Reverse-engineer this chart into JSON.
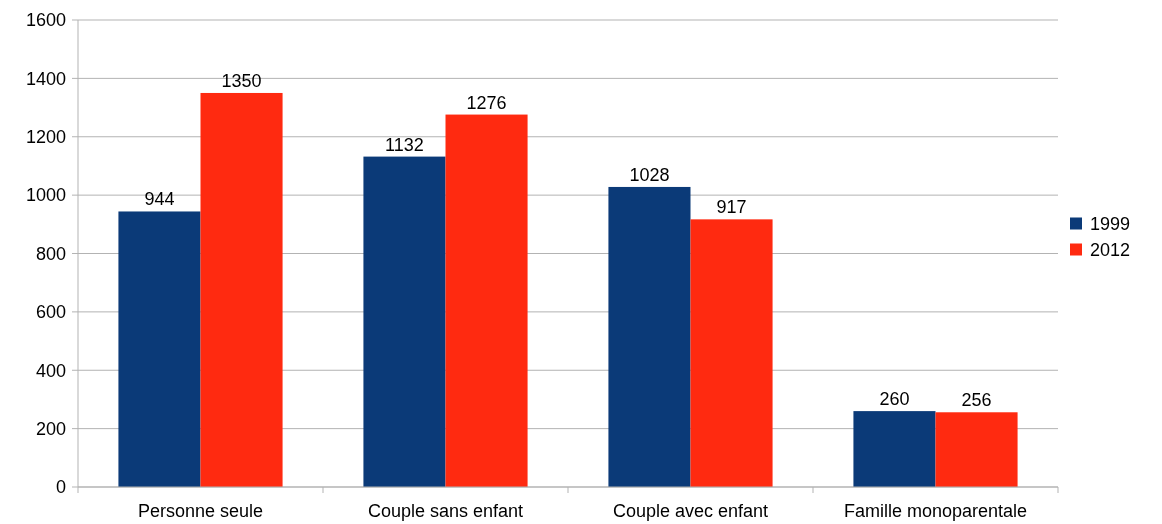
{
  "chart_data": {
    "type": "bar",
    "categories": [
      "Personne seule",
      "Couple sans enfant",
      "Couple avec enfant",
      "Famille monoparentale"
    ],
    "series": [
      {
        "name": "1999",
        "color": "#0b3a78",
        "values": [
          944,
          1132,
          1028,
          260
        ]
      },
      {
        "name": "2012",
        "color": "#ff2a10",
        "values": [
          1350,
          1276,
          917,
          256
        ]
      }
    ],
    "ylim": [
      0,
      1600
    ],
    "yticks": [
      0,
      200,
      400,
      600,
      800,
      1000,
      1200,
      1400,
      1600
    ],
    "grid": "y",
    "legend": "right",
    "data_labels": true
  }
}
